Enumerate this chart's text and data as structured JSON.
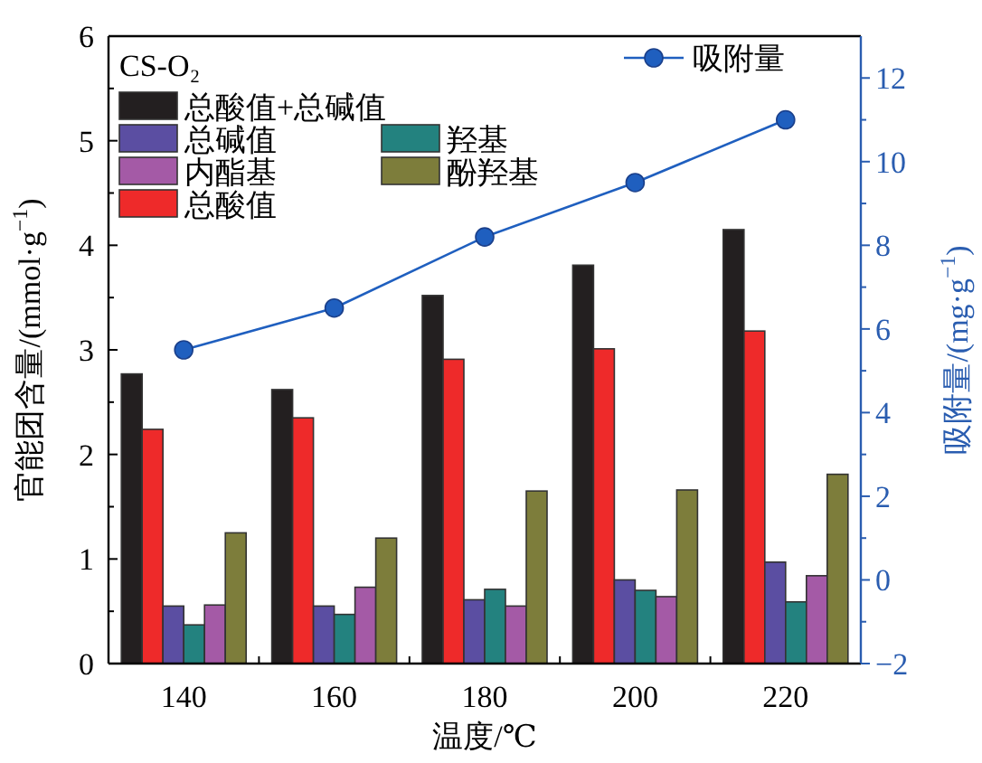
{
  "chart_data": {
    "type": "bar",
    "annotations": [
      "CS-O₂"
    ],
    "xlabel": "温度/℃",
    "ylabel": "官能团含量/(mmol·g$^{−1}$)",
    "y2label": "吸附量/(mg·g$^{−1}$)",
    "categories": [
      "140",
      "160",
      "180",
      "200",
      "220"
    ],
    "ylim": [
      0,
      6
    ],
    "yticks": [
      0,
      1,
      2,
      3,
      4,
      5,
      6
    ],
    "y2lim": [
      -2,
      13
    ],
    "y2ticks": [
      -2,
      0,
      2,
      4,
      6,
      8,
      10,
      12
    ],
    "legend": "top",
    "series": [
      {
        "name": "总酸值+总碱值",
        "color": "#231f20",
        "values": [
          2.77,
          2.62,
          3.52,
          3.81,
          4.15
        ]
      },
      {
        "name": "总酸值",
        "color": "#ee2a2a",
        "values": [
          2.24,
          2.35,
          2.91,
          3.01,
          3.18
        ]
      },
      {
        "name": "总碱值",
        "color": "#5b4ea2",
        "values": [
          0.55,
          0.55,
          0.61,
          0.8,
          0.97
        ]
      },
      {
        "name": "羟基",
        "color": "#23827f",
        "values": [
          0.37,
          0.47,
          0.71,
          0.7,
          0.59
        ]
      },
      {
        "name": "内酯基",
        "color": "#a45aa6",
        "values": [
          0.56,
          0.73,
          0.55,
          0.64,
          0.84
        ]
      },
      {
        "name": "酚羟基",
        "color": "#7d7d3b",
        "values": [
          1.25,
          1.2,
          1.65,
          1.66,
          1.81
        ]
      },
      {
        "name": "吸附量",
        "color": "#1f5fbf",
        "type": "line",
        "axis": "y2",
        "marker": "circle",
        "values": [
          5.5,
          6.5,
          8.2,
          9.5,
          11.0
        ]
      }
    ]
  }
}
